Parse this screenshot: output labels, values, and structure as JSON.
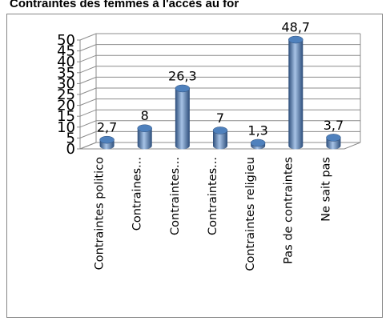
{
  "chart_data": {
    "type": "bar",
    "title": "Contraintes des femmes à l'accès au for",
    "categories": [
      "Contraintes politico",
      "Contraines...",
      "Contraintes...",
      "Contraintes...",
      "Contraintes religieu",
      "Pas de contraintes",
      "Ne sait pas"
    ],
    "values": [
      2.7,
      8,
      26.3,
      7,
      1.3,
      48.7,
      3.7
    ],
    "data_labels": [
      "2,7",
      "8",
      "26,3",
      "7",
      "1,3",
      "48,7",
      "3,7"
    ],
    "ylim": [
      0,
      50
    ],
    "yticks": [
      0,
      5,
      10,
      15,
      20,
      25,
      30,
      35,
      40,
      45,
      50
    ],
    "xlabel": "",
    "ylabel": "",
    "grid": true,
    "style": "3d-cylinder",
    "colors": {
      "bar": "#4f81bd",
      "bar_dark": "#2c4d7a",
      "bar_light": "#a7c3e6",
      "grid": "#8c8c8c"
    }
  }
}
